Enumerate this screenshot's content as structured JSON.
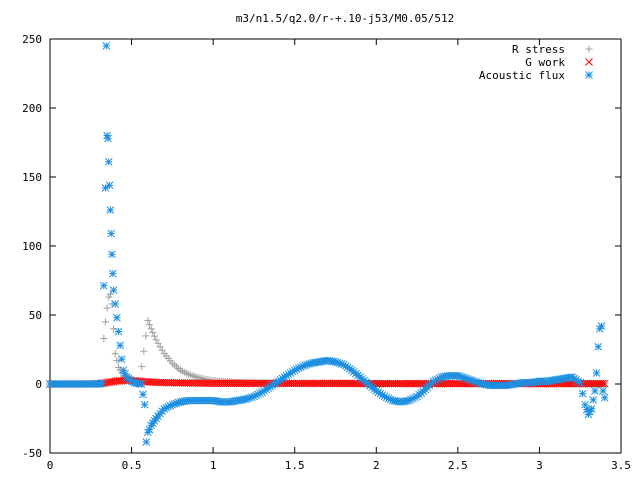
{
  "chart_data": {
    "type": "scatter",
    "title": "m3/n1.5/q2.0/r-+.10-j53/M0.05/512",
    "xlabel": "",
    "ylabel": "",
    "xlim": [
      0,
      3.5
    ],
    "ylim": [
      -50,
      250
    ],
    "x_ticks": [
      {
        "value": 0,
        "label": "0"
      },
      {
        "value": 0.5,
        "label": "0.5"
      },
      {
        "value": 1,
        "label": "1"
      },
      {
        "value": 1.5,
        "label": "1.5"
      },
      {
        "value": 2,
        "label": "2"
      },
      {
        "value": 2.5,
        "label": "2.5"
      },
      {
        "value": 3,
        "label": "3"
      },
      {
        "value": 3.5,
        "label": "3.5"
      }
    ],
    "y_ticks": [
      {
        "value": -50,
        "label": "-50"
      },
      {
        "value": 0,
        "label": "0"
      },
      {
        "value": 50,
        "label": "50"
      },
      {
        "value": 100,
        "label": "100"
      },
      {
        "value": 150,
        "label": "150"
      },
      {
        "value": 200,
        "label": "200"
      },
      {
        "value": 250,
        "label": "250"
      }
    ],
    "grid": false,
    "legend_position": "top-right",
    "series": [
      {
        "name": "R stress",
        "marker": "plus",
        "color": "#a0a0a0",
        "x": [
          0.33,
          0.34,
          0.35,
          0.36,
          0.37,
          0.38,
          0.39,
          0.4,
          0.42,
          0.45,
          0.5,
          0.55,
          0.6,
          0.62,
          0.65,
          0.7,
          0.75,
          0.8,
          0.85,
          0.9,
          0.95,
          1.0,
          1.05,
          1.1,
          1.2,
          1.3,
          1.4,
          1.6,
          1.8,
          2.0,
          2.2,
          2.4,
          2.6,
          2.8,
          3.0,
          3.2,
          3.3,
          3.4
        ],
        "y": [
          33,
          45,
          55,
          63,
          65,
          58,
          40,
          22,
          12,
          6,
          3,
          1.5,
          46,
          40,
          32,
          22,
          15,
          10,
          7,
          5,
          3.5,
          2.5,
          2,
          1.5,
          1,
          0.8,
          0.6,
          0.5,
          0.4,
          0.3,
          0.3,
          0.3,
          0.3,
          0.2,
          0.2,
          0.2,
          0.2,
          0.2
        ]
      },
      {
        "name": "G work",
        "marker": "cross",
        "color": "#ff0000",
        "x": [
          0.0,
          0.1,
          0.2,
          0.3,
          0.35,
          0.4,
          0.45,
          0.5,
          0.55,
          0.6,
          0.65,
          0.7,
          0.8,
          0.9,
          1.0,
          1.1,
          1.2,
          1.3,
          1.4,
          1.5,
          1.6,
          1.7,
          1.8,
          1.9,
          2.0,
          2.1,
          2.2,
          2.3,
          2.4,
          2.5,
          2.6,
          2.7,
          2.8,
          2.9,
          3.0,
          3.1,
          3.2,
          3.3,
          3.35,
          3.4
        ],
        "y": [
          0,
          0,
          0,
          0.3,
          1,
          2,
          2.5,
          2.5,
          2,
          1.5,
          1.2,
          1,
          0.8,
          0.6,
          0.5,
          0.5,
          0.4,
          0.4,
          0.4,
          0.4,
          0.4,
          0.4,
          0.4,
          0.3,
          0.3,
          0.3,
          0.3,
          0.3,
          0.3,
          0.3,
          0.3,
          0.3,
          0.3,
          0.3,
          0.3,
          0.3,
          0.3,
          0.3,
          0.3,
          0.3
        ]
      },
      {
        "name": "Acoustic flux",
        "marker": "star",
        "color": "#1e8fe0",
        "x": [
          0.0,
          0.05,
          0.1,
          0.15,
          0.2,
          0.25,
          0.3,
          0.32,
          0.34,
          0.345,
          0.35,
          0.355,
          0.36,
          0.365,
          0.37,
          0.375,
          0.38,
          0.385,
          0.39,
          0.4,
          0.41,
          0.42,
          0.43,
          0.44,
          0.45,
          0.47,
          0.5,
          0.53,
          0.56,
          0.58,
          0.59,
          0.6,
          0.61,
          0.62,
          0.65,
          0.7,
          0.75,
          0.8,
          0.85,
          0.9,
          0.95,
          1.0,
          1.05,
          1.1,
          1.15,
          1.2,
          1.25,
          1.3,
          1.35,
          1.4,
          1.45,
          1.5,
          1.55,
          1.6,
          1.65,
          1.7,
          1.75,
          1.8,
          1.85,
          1.9,
          1.95,
          2.0,
          2.05,
          2.1,
          2.15,
          2.2,
          2.25,
          2.3,
          2.35,
          2.4,
          2.45,
          2.5,
          2.55,
          2.6,
          2.65,
          2.7,
          2.75,
          2.8,
          2.85,
          2.9,
          2.95,
          3.0,
          3.05,
          3.1,
          3.15,
          3.2,
          3.25,
          3.28,
          3.3,
          3.32,
          3.34,
          3.35,
          3.36,
          3.37,
          3.38,
          3.39,
          3.4
        ],
        "y": [
          0,
          0,
          0,
          0,
          0,
          0,
          0,
          0.5,
          142,
          245,
          180,
          178,
          161,
          144,
          126,
          109,
          94,
          80,
          68,
          58,
          48,
          38,
          28,
          18,
          10,
          5,
          2,
          0.5,
          0,
          -15,
          -42,
          -35,
          -33,
          -30,
          -25,
          -18,
          -15,
          -13,
          -12,
          -12,
          -12,
          -12,
          -13,
          -13,
          -12,
          -11,
          -9,
          -6,
          -2,
          2,
          6,
          10,
          13,
          15,
          16,
          17,
          16,
          14,
          10,
          5,
          0,
          -5,
          -9,
          -12,
          -13,
          -12,
          -9,
          -4,
          2,
          5,
          6,
          6,
          4,
          2,
          0,
          -1,
          -1,
          -1,
          0,
          1,
          1,
          2,
          2,
          3,
          4,
          5,
          1,
          -15,
          -22,
          -18,
          -5,
          8,
          27,
          40,
          42,
          -5,
          -10
        ]
      }
    ]
  }
}
